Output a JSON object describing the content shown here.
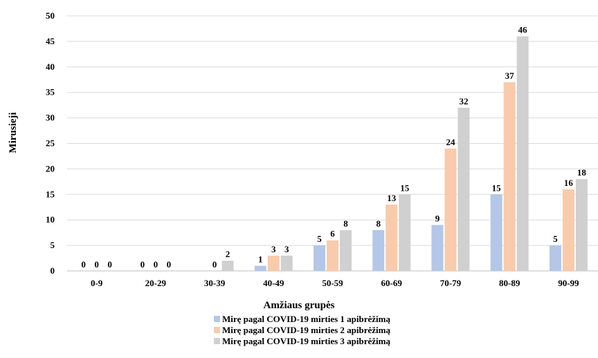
{
  "chart_data": {
    "type": "bar",
    "categories": [
      "0-9",
      "20-29",
      "30-39",
      "40-49",
      "50-59",
      "60-69",
      "70-79",
      "80-89",
      "90-99"
    ],
    "series": [
      {
        "name": "Mirę pagal COVID-19 mirties 1 apibrėžimą",
        "values": [
          0,
          0,
          0,
          1,
          5,
          8,
          9,
          15,
          5
        ]
      },
      {
        "name": "Mirę pagal COVID-19 mirties 2 apibrėžimą",
        "values": [
          0,
          0,
          0,
          3,
          6,
          13,
          24,
          37,
          16
        ]
      },
      {
        "name": "Mirę pagal COVID-19 mirties 3 apibrėžimą",
        "values": [
          0,
          0,
          2,
          3,
          8,
          15,
          32,
          46,
          18
        ]
      }
    ],
    "data_labels": [
      [
        "0",
        "0",
        "",
        "1",
        "5",
        "8",
        "9",
        "15",
        "5"
      ],
      [
        "0",
        "0",
        "0",
        "3",
        "6",
        "13",
        "24",
        "37",
        "16"
      ],
      [
        "0",
        "0",
        "2",
        "3",
        "8",
        "15",
        "32",
        "46",
        "18"
      ]
    ],
    "colors": [
      "#b4c7e7",
      "#f8cbad",
      "#d0d0d0"
    ],
    "xlabel": "Amžiaus grupės",
    "ylabel": "Mirusieji",
    "ylim": [
      0,
      50
    ],
    "yticks": [
      0,
      5,
      10,
      15,
      20,
      25,
      30,
      35,
      40,
      45,
      50
    ],
    "grid": true,
    "legend_position": "bottom"
  }
}
